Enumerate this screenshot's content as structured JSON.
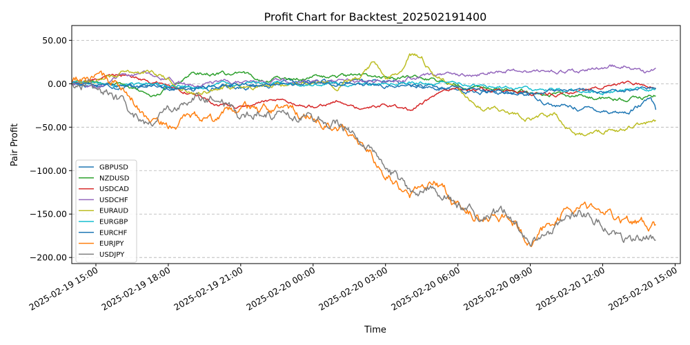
{
  "chart_data": {
    "type": "line",
    "title": "Profit Chart for Backtest_202502191400",
    "xlabel": "Time",
    "ylabel": "Pair Profit",
    "x_range": [
      "2025-02-19 14:00",
      "2025-02-20 15:13"
    ],
    "ylim": [
      -207,
      67
    ],
    "y_ticks": [
      50,
      0,
      -50,
      -100,
      -150,
      -200
    ],
    "y_tick_labels": [
      "50.00",
      "0.00",
      "−50.00",
      "−100.00",
      "−150.00",
      "−200.00"
    ],
    "x_ticks": [
      "2025-02-19 15:00",
      "2025-02-19 18:00",
      "2025-02-19 21:00",
      "2025-02-20 00:00",
      "2025-02-20 03:00",
      "2025-02-20 06:00",
      "2025-02-20 09:00",
      "2025-02-20 12:00",
      "2025-02-20 15:00"
    ],
    "grid": "horizontal dashed",
    "legend_position": "lower-left",
    "series": [
      {
        "name": "GBPUSD",
        "color": "#1f77b4",
        "points": [
          [
            "2025-02-19 14:00",
            0
          ],
          [
            "2025-02-19 15:30",
            -2
          ],
          [
            "2025-02-19 17:00",
            -3
          ],
          [
            "2025-02-19 19:00",
            -5
          ],
          [
            "2025-02-19 21:00",
            -3
          ],
          [
            "2025-02-20 00:00",
            2
          ],
          [
            "2025-02-20 03:00",
            3
          ],
          [
            "2025-02-20 05:00",
            -5
          ],
          [
            "2025-02-20 07:00",
            -10
          ],
          [
            "2025-02-20 09:00",
            -12
          ],
          [
            "2025-02-20 10:00",
            -25
          ],
          [
            "2025-02-20 11:00",
            -28
          ],
          [
            "2025-02-20 12:00",
            -30
          ],
          [
            "2025-02-20 13:00",
            -33
          ],
          [
            "2025-02-20 14:00",
            -18
          ],
          [
            "2025-02-20 14:12",
            -30
          ]
        ]
      },
      {
        "name": "NZDUSD",
        "color": "#2ca02c",
        "points": [
          [
            "2025-02-19 14:00",
            3
          ],
          [
            "2025-02-19 16:00",
            2
          ],
          [
            "2025-02-19 17:30",
            -15
          ],
          [
            "2025-02-19 18:30",
            5
          ],
          [
            "2025-02-19 19:00",
            13
          ],
          [
            "2025-02-19 21:00",
            10
          ],
          [
            "2025-02-19 22:00",
            5
          ],
          [
            "2025-02-20 00:00",
            8
          ],
          [
            "2025-02-20 02:00",
            8
          ],
          [
            "2025-02-20 03:00",
            8
          ],
          [
            "2025-02-20 05:00",
            5
          ],
          [
            "2025-02-20 06:00",
            0
          ],
          [
            "2025-02-20 08:00",
            -8
          ],
          [
            "2025-02-20 10:00",
            -12
          ],
          [
            "2025-02-20 12:00",
            -17
          ],
          [
            "2025-02-20 13:00",
            -18
          ],
          [
            "2025-02-20 14:12",
            -14
          ]
        ]
      },
      {
        "name": "USDCAD",
        "color": "#d62728",
        "points": [
          [
            "2025-02-19 14:00",
            0
          ],
          [
            "2025-02-19 15:00",
            5
          ],
          [
            "2025-02-19 16:00",
            12
          ],
          [
            "2025-02-19 17:00",
            5
          ],
          [
            "2025-02-19 19:00",
            -10
          ],
          [
            "2025-02-19 20:00",
            -25
          ],
          [
            "2025-02-19 21:00",
            -28
          ],
          [
            "2025-02-19 22:00",
            -20
          ],
          [
            "2025-02-20 00:00",
            -25
          ],
          [
            "2025-02-20 01:00",
            -20
          ],
          [
            "2025-02-20 02:00",
            -30
          ],
          [
            "2025-02-20 03:00",
            -25
          ],
          [
            "2025-02-20 04:00",
            -30
          ],
          [
            "2025-02-20 05:00",
            -15
          ],
          [
            "2025-02-20 06:00",
            -5
          ],
          [
            "2025-02-20 08:00",
            -10
          ],
          [
            "2025-02-20 10:00",
            -12
          ],
          [
            "2025-02-20 11:00",
            -10
          ],
          [
            "2025-02-20 12:00",
            -2
          ],
          [
            "2025-02-20 13:00",
            2
          ],
          [
            "2025-02-20 14:12",
            -5
          ]
        ]
      },
      {
        "name": "USDCHF",
        "color": "#9467bd",
        "points": [
          [
            "2025-02-19 14:00",
            0
          ],
          [
            "2025-02-19 15:00",
            -5
          ],
          [
            "2025-02-19 16:00",
            10
          ],
          [
            "2025-02-19 17:00",
            12
          ],
          [
            "2025-02-19 18:00",
            5
          ],
          [
            "2025-02-19 19:00",
            -3
          ],
          [
            "2025-02-19 21:00",
            2
          ],
          [
            "2025-02-20 00:00",
            2
          ],
          [
            "2025-02-20 03:00",
            5
          ],
          [
            "2025-02-20 05:00",
            10
          ],
          [
            "2025-02-20 06:00",
            8
          ],
          [
            "2025-02-20 07:00",
            12
          ],
          [
            "2025-02-20 08:00",
            16
          ],
          [
            "2025-02-20 10:00",
            15
          ],
          [
            "2025-02-20 11:00",
            14
          ],
          [
            "2025-02-20 12:00",
            20
          ],
          [
            "2025-02-20 13:00",
            21
          ],
          [
            "2025-02-20 13:45",
            12
          ],
          [
            "2025-02-20 14:12",
            18
          ]
        ]
      },
      {
        "name": "EURAUD",
        "color": "#bcbd22",
        "points": [
          [
            "2025-02-19 14:00",
            0
          ],
          [
            "2025-02-19 15:00",
            5
          ],
          [
            "2025-02-19 16:00",
            12
          ],
          [
            "2025-02-19 17:00",
            15
          ],
          [
            "2025-02-19 18:00",
            5
          ],
          [
            "2025-02-19 19:00",
            -10
          ],
          [
            "2025-02-19 21:00",
            -2
          ],
          [
            "2025-02-20 00:00",
            3
          ],
          [
            "2025-02-20 01:00",
            -2
          ],
          [
            "2025-02-20 02:00",
            10
          ],
          [
            "2025-02-20 02:30",
            25
          ],
          [
            "2025-02-20 03:00",
            5
          ],
          [
            "2025-02-20 03:45",
            15
          ],
          [
            "2025-02-20 04:00",
            35
          ],
          [
            "2025-02-20 04:30",
            30
          ],
          [
            "2025-02-20 05:00",
            10
          ],
          [
            "2025-02-20 06:00",
            -5
          ],
          [
            "2025-02-20 07:00",
            -28
          ],
          [
            "2025-02-20 08:00",
            -30
          ],
          [
            "2025-02-20 09:00",
            -40
          ],
          [
            "2025-02-20 10:00",
            -35
          ],
          [
            "2025-02-20 10:30",
            -50
          ],
          [
            "2025-02-20 11:00",
            -58
          ],
          [
            "2025-02-20 12:00",
            -55
          ],
          [
            "2025-02-20 13:00",
            -50
          ],
          [
            "2025-02-20 14:12",
            -42
          ]
        ]
      },
      {
        "name": "EURGBP",
        "color": "#17becf",
        "points": [
          [
            "2025-02-19 14:00",
            2
          ],
          [
            "2025-02-19 15:00",
            0
          ],
          [
            "2025-02-19 17:00",
            -2
          ],
          [
            "2025-02-19 19:00",
            -3
          ],
          [
            "2025-02-19 21:00",
            0
          ],
          [
            "2025-02-20 00:00",
            -1
          ],
          [
            "2025-02-20 03:00",
            0
          ],
          [
            "2025-02-20 05:00",
            2
          ],
          [
            "2025-02-20 07:00",
            -2
          ],
          [
            "2025-02-20 09:00",
            -5
          ],
          [
            "2025-02-20 11:00",
            -8
          ],
          [
            "2025-02-20 12:00",
            -10
          ],
          [
            "2025-02-20 13:00",
            -8
          ],
          [
            "2025-02-20 14:12",
            -5
          ]
        ]
      },
      {
        "name": "EURCHF",
        "color": "#1f77b4",
        "points": [
          [
            "2025-02-19 14:00",
            2
          ],
          [
            "2025-02-19 15:00",
            -1
          ],
          [
            "2025-02-19 17:00",
            -3
          ],
          [
            "2025-02-19 19:00",
            -5
          ],
          [
            "2025-02-19 21:00",
            -2
          ],
          [
            "2025-02-20 00:00",
            0
          ],
          [
            "2025-02-20 03:00",
            -2
          ],
          [
            "2025-02-20 05:00",
            -4
          ],
          [
            "2025-02-20 07:00",
            -8
          ],
          [
            "2025-02-20 09:00",
            -12
          ],
          [
            "2025-02-20 10:00",
            -8
          ],
          [
            "2025-02-20 11:00",
            -5
          ],
          [
            "2025-02-20 12:00",
            -10
          ],
          [
            "2025-02-20 13:00",
            -8
          ],
          [
            "2025-02-20 14:12",
            -6
          ]
        ]
      },
      {
        "name": "EURJPY",
        "color": "#ff7f0e",
        "points": [
          [
            "2025-02-19 14:00",
            0
          ],
          [
            "2025-02-19 15:00",
            10
          ],
          [
            "2025-02-19 16:00",
            -5
          ],
          [
            "2025-02-19 17:00",
            -35
          ],
          [
            "2025-02-19 18:00",
            -50
          ],
          [
            "2025-02-19 19:00",
            -40
          ],
          [
            "2025-02-19 20:00",
            -45
          ],
          [
            "2025-02-19 21:00",
            -30
          ],
          [
            "2025-02-19 22:00",
            -32
          ],
          [
            "2025-02-20 00:00",
            -38
          ],
          [
            "2025-02-20 01:00",
            -45
          ],
          [
            "2025-02-20 01:30",
            -55
          ],
          [
            "2025-02-20 02:00",
            -70
          ],
          [
            "2025-02-20 03:00",
            -100
          ],
          [
            "2025-02-20 04:00",
            -130
          ],
          [
            "2025-02-20 05:00",
            -110
          ],
          [
            "2025-02-20 06:00",
            -140
          ],
          [
            "2025-02-20 07:00",
            -155
          ],
          [
            "2025-02-20 08:00",
            -150
          ],
          [
            "2025-02-20 09:00",
            -180
          ],
          [
            "2025-02-20 10:00",
            -160
          ],
          [
            "2025-02-20 11:00",
            -140
          ],
          [
            "2025-02-20 12:00",
            -145
          ],
          [
            "2025-02-20 13:00",
            -158
          ],
          [
            "2025-02-20 14:12",
            -162
          ]
        ]
      },
      {
        "name": "USDJPY",
        "color": "#7f7f7f",
        "points": [
          [
            "2025-02-19 14:00",
            0
          ],
          [
            "2025-02-19 15:00",
            0
          ],
          [
            "2025-02-19 16:00",
            -20
          ],
          [
            "2025-02-19 17:00",
            -45
          ],
          [
            "2025-02-19 18:00",
            -30
          ],
          [
            "2025-02-19 19:00",
            -20
          ],
          [
            "2025-02-19 20:00",
            -15
          ],
          [
            "2025-02-19 21:00",
            -35
          ],
          [
            "2025-02-19 22:00",
            -30
          ],
          [
            "2025-02-20 00:00",
            -38
          ],
          [
            "2025-02-20 01:00",
            -45
          ],
          [
            "2025-02-20 01:30",
            -55
          ],
          [
            "2025-02-20 02:00",
            -65
          ],
          [
            "2025-02-20 03:00",
            -100
          ],
          [
            "2025-02-20 04:00",
            -125
          ],
          [
            "2025-02-20 05:00",
            -115
          ],
          [
            "2025-02-20 06:00",
            -140
          ],
          [
            "2025-02-20 07:00",
            -155
          ],
          [
            "2025-02-20 08:00",
            -150
          ],
          [
            "2025-02-20 09:00",
            -185
          ],
          [
            "2025-02-20 10:00",
            -165
          ],
          [
            "2025-02-20 11:00",
            -150
          ],
          [
            "2025-02-20 12:00",
            -160
          ],
          [
            "2025-02-20 13:00",
            -178
          ],
          [
            "2025-02-20 14:12",
            -180
          ]
        ]
      }
    ]
  }
}
